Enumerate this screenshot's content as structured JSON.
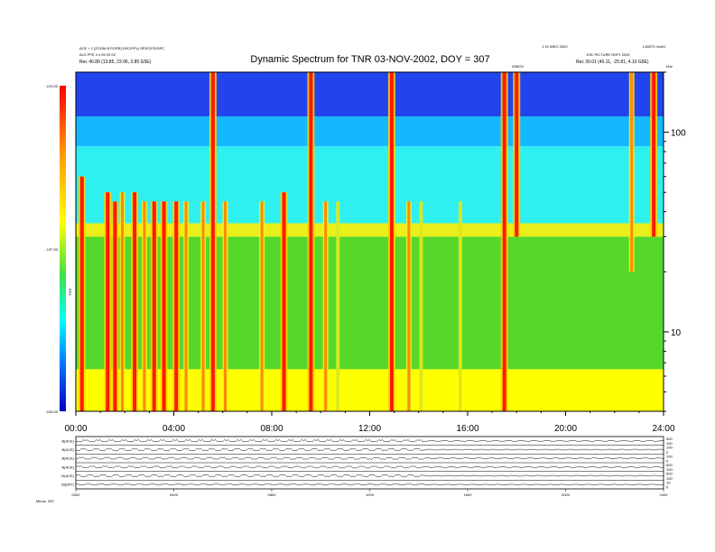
{
  "chart_data": {
    "type": "heatmap",
    "title": "Dynamic Spectrum for TNR 03-NOV-2002, DOY = 307",
    "header_left": [
      "ACE + 2 [ZOOM B PCRR] DEC/PPL)  SPEC/PS/DPC",
      "ALS PPE 2 s 05 03 02",
      "Rec  40.89 (13.85, 23.06, 3.85 G5E)"
    ],
    "header_right": [
      "1.10 WEO 2003",
      "L38370 m/s01",
      "ESL PICTURE RDF1 2002",
      "Rec  30.01 (40.11, -25.81, 4.10 G5E)"
    ],
    "cursor_label": "03NOV",
    "colorbar": {
      "ticks": [
        "-120.00",
        "-137.50",
        "-155.00"
      ],
      "label": "TNR",
      "vmin": -155.0,
      "vmax": -120.0
    },
    "y_unit": "kHz",
    "y_scale": "log",
    "ylim": [
      4,
      200
    ],
    "yticks": [
      10,
      100
    ],
    "xlim": [
      0,
      24
    ],
    "xticks": [
      "00:00",
      "04:00",
      "08:00",
      "12:00",
      "16:00",
      "20:00",
      "24:00"
    ],
    "xtick_values": [
      0,
      4,
      8,
      12,
      16,
      20,
      24
    ],
    "background_bands": [
      {
        "from_khz": 4,
        "to_khz": 6.5,
        "color": "#ffff00"
      },
      {
        "from_khz": 6.5,
        "to_khz": 30,
        "color": "#55d82a"
      },
      {
        "from_khz": 30,
        "to_khz": 35,
        "color": "#e8ef1a"
      },
      {
        "from_khz": 35,
        "to_khz": 85,
        "color": "#2ff0f0"
      },
      {
        "from_khz": 85,
        "to_khz": 120,
        "color": "#14b8ff"
      },
      {
        "from_khz": 120,
        "to_khz": 200,
        "color": "#2244ee"
      }
    ],
    "bursts": [
      {
        "t": 0.25,
        "f_low": 4,
        "f_high": 60,
        "intensity": "high"
      },
      {
        "t": 1.3,
        "f_low": 4,
        "f_high": 50,
        "intensity": "high"
      },
      {
        "t": 1.6,
        "f_low": 4,
        "f_high": 45,
        "intensity": "high"
      },
      {
        "t": 1.9,
        "f_low": 4,
        "f_high": 50,
        "intensity": "medium"
      },
      {
        "t": 2.4,
        "f_low": 4,
        "f_high": 50,
        "intensity": "high"
      },
      {
        "t": 2.8,
        "f_low": 4,
        "f_high": 45,
        "intensity": "medium"
      },
      {
        "t": 3.2,
        "f_low": 4,
        "f_high": 45,
        "intensity": "high"
      },
      {
        "t": 3.6,
        "f_low": 4,
        "f_high": 45,
        "intensity": "high"
      },
      {
        "t": 4.1,
        "f_low": 4,
        "f_high": 45,
        "intensity": "high"
      },
      {
        "t": 4.5,
        "f_low": 4,
        "f_high": 45,
        "intensity": "medium"
      },
      {
        "t": 5.2,
        "f_low": 4,
        "f_high": 45,
        "intensity": "medium"
      },
      {
        "t": 5.6,
        "f_low": 4,
        "f_high": 200,
        "intensity": "high"
      },
      {
        "t": 6.1,
        "f_low": 4,
        "f_high": 45,
        "intensity": "medium"
      },
      {
        "t": 7.6,
        "f_low": 4,
        "f_high": 45,
        "intensity": "medium"
      },
      {
        "t": 8.5,
        "f_low": 4,
        "f_high": 50,
        "intensity": "high"
      },
      {
        "t": 9.6,
        "f_low": 4,
        "f_high": 200,
        "intensity": "high"
      },
      {
        "t": 10.2,
        "f_low": 4,
        "f_high": 45,
        "intensity": "medium"
      },
      {
        "t": 10.7,
        "f_low": 4,
        "f_high": 45,
        "intensity": "low"
      },
      {
        "t": 12.9,
        "f_low": 4,
        "f_high": 200,
        "intensity": "high"
      },
      {
        "t": 13.6,
        "f_low": 4,
        "f_high": 45,
        "intensity": "medium"
      },
      {
        "t": 14.1,
        "f_low": 4,
        "f_high": 45,
        "intensity": "low"
      },
      {
        "t": 15.7,
        "f_low": 4,
        "f_high": 45,
        "intensity": "low"
      },
      {
        "t": 17.5,
        "f_low": 4,
        "f_high": 200,
        "intensity": "high"
      },
      {
        "t": 18.0,
        "f_low": 30,
        "f_high": 200,
        "intensity": "high"
      },
      {
        "t": 22.7,
        "f_low": 20,
        "f_high": 200,
        "intensity": "medium"
      },
      {
        "t": 23.6,
        "f_low": 30,
        "f_high": 200,
        "intensity": "high"
      }
    ],
    "lower_panels": {
      "labels": [
        "B(ACE)",
        "B(ACE)",
        "B(ACE)",
        "B(ACE)",
        "N(ACE)",
        "|B|(WT)"
      ],
      "right_ticks": [
        [
          "500",
          "100"
        ],
        [
          "100",
          "0"
        ],
        [
          "100",
          "0"
        ],
        [
          "500",
          "100"
        ],
        [
          "500",
          "100"
        ],
        [
          "10",
          "0"
        ]
      ],
      "xticks": [
        "0000",
        "0400",
        "0800",
        "1200",
        "1600",
        "2000",
        "2400"
      ],
      "footer": "Minus.  200"
    }
  }
}
